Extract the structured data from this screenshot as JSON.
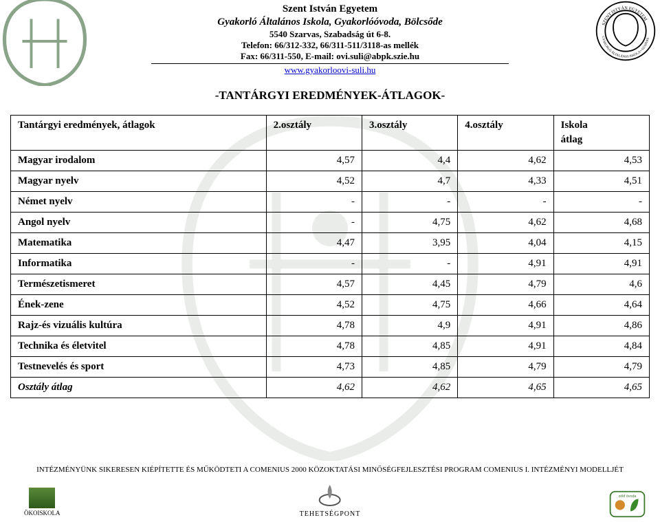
{
  "header": {
    "university": "Szent István Egyetem",
    "school": "Gyakorló Általános Iskola, Gyakorlóóvoda, Bölcsőde",
    "address": "5540 Szarvas, Szabadság út 6-8.",
    "phone": "Telefon: 66/312-332, 66/311-511/3118-as mellék",
    "fax_email": "Fax: 66/311-550, E-mail: ovi.suli@abpk.szie.hu",
    "url": "www.gyakorloovi-suli.hu"
  },
  "title": "-TANTÁRGYI EREDMÉNYEK-ÁTLAGOK-",
  "table": {
    "columns": [
      "Tantárgyi eredmények, átlagok",
      "2.osztály",
      "3.osztály",
      "4.osztály",
      "Iskola"
    ],
    "sub_last": "átlag",
    "rows": [
      {
        "label": "Magyar irodalom",
        "v": [
          "4,57",
          "4,4",
          "4,62",
          "4,53"
        ]
      },
      {
        "label": "Magyar nyelv",
        "v": [
          "4,52",
          "4,7",
          "4,33",
          "4,51"
        ]
      },
      {
        "label": "Német nyelv",
        "v": [
          "-",
          "-",
          "-",
          "-"
        ]
      },
      {
        "label": "Angol nyelv",
        "v": [
          "-",
          "4,75",
          "4,62",
          "4,68"
        ]
      },
      {
        "label": "Matematika",
        "v": [
          "4,47",
          "3,95",
          "4,04",
          "4,15"
        ]
      },
      {
        "label": "Informatika",
        "v": [
          "-",
          "-",
          "4,91",
          "4,91"
        ]
      },
      {
        "label": "Természetismeret",
        "v": [
          "4,57",
          "4,45",
          "4,79",
          "4,6"
        ]
      },
      {
        "label": "Ének-zene",
        "v": [
          "4,52",
          "4,75",
          "4,66",
          "4,64"
        ]
      },
      {
        "label": "Rajz-és vizuális kultúra",
        "v": [
          "4,78",
          "4,9",
          "4,91",
          "4,86"
        ]
      },
      {
        "label": "Technika és életvitel",
        "v": [
          "4,78",
          "4,85",
          "4,91",
          "4,84"
        ]
      },
      {
        "label": "Testnevelés és sport",
        "v": [
          "4,73",
          "4,85",
          "4,79",
          "4,79"
        ]
      }
    ],
    "totals": {
      "label": "Osztály átlag",
      "v": [
        "4,62",
        "4,62",
        "4,65",
        "4,65"
      ]
    }
  },
  "footer": {
    "accreditation": "INTÉZMÉNYÜNK SIKERESEN KIÉPÍTETTE ÉS MŰKÖDTETI A COMENIUS 2000 KÖZOKTATÁSI MINŐSÉGFEJLESZTÉSI PROGRAM COMENIUS I. INTÉZMÉNYI MODELLJÉT",
    "eco_label": "ÖKOISKOLA",
    "talent_label": "TEHETSÉGPONT"
  }
}
